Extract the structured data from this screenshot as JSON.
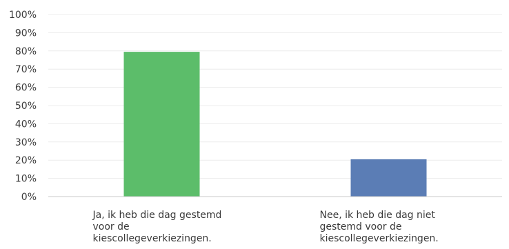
{
  "chart_data": {
    "type": "bar",
    "categories": [
      "Ja, ik heb die dag gestemd voor de kiescollegeverkiezingen.",
      "Nee, ik heb die dag niet gestemd voor de kiescollegeverkiezingen."
    ],
    "category_lines": [
      [
        "Ja, ik heb die dag gestemd",
        "voor de",
        "kiescollegeverkiezingen."
      ],
      [
        "Nee, ik heb die dag niet",
        "gestemd voor de",
        "kiescollegeverkiezingen."
      ]
    ],
    "values": [
      79.5,
      20.5
    ],
    "unit": "%",
    "ylim": [
      0,
      100
    ],
    "yticks": [
      "0%",
      "10%",
      "20%",
      "30%",
      "40%",
      "50%",
      "60%",
      "70%",
      "80%",
      "90%",
      "100%"
    ],
    "colors": [
      "#5cbd6a",
      "#5b7db5"
    ],
    "grid": true,
    "title": "",
    "xlabel": "",
    "ylabel": ""
  }
}
